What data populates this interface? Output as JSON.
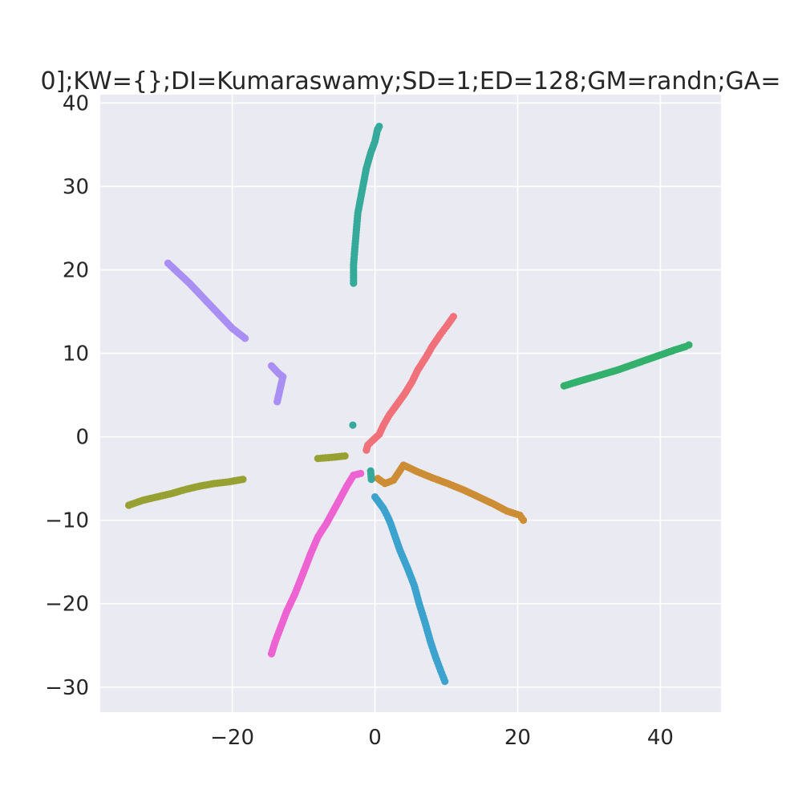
{
  "chart_data": {
    "type": "scatter",
    "title": "0];KW={};DI=Kumaraswamy;SD=1;ED=128;GM=randn;GA=",
    "xlabel": "",
    "ylabel": "",
    "xlim": [
      -38.5,
      48.5
    ],
    "ylim": [
      -33,
      41
    ],
    "grid": true,
    "background": "#eaeaf2",
    "grid_color": "#ffffff",
    "x_ticks": [
      {
        "value": -20,
        "label": "−20"
      },
      {
        "value": 0,
        "label": "0"
      },
      {
        "value": 20,
        "label": "20"
      },
      {
        "value": 40,
        "label": "40"
      }
    ],
    "y_ticks": [
      {
        "value": 40,
        "label": "40"
      },
      {
        "value": 30,
        "label": "30"
      },
      {
        "value": 20,
        "label": "20"
      },
      {
        "value": 10,
        "label": "10"
      },
      {
        "value": 0,
        "label": "0"
      },
      {
        "value": -10,
        "label": "−10"
      },
      {
        "value": -20,
        "label": "−20"
      },
      {
        "value": -30,
        "label": "−30"
      }
    ],
    "series": [
      {
        "color": "#f0717a",
        "points": [
          [
            -1.2,
            -1.6
          ],
          [
            -1.0,
            -1.0
          ],
          [
            -0.4,
            -0.5
          ],
          [
            0.6,
            0.3
          ],
          [
            1.2,
            1.4
          ],
          [
            2.0,
            2.6
          ],
          [
            3.2,
            4.0
          ],
          [
            4.2,
            5.2
          ],
          [
            5.2,
            6.6
          ],
          [
            6.0,
            8.0
          ],
          [
            7.2,
            9.6
          ],
          [
            8.0,
            10.8
          ],
          [
            9.2,
            12.3
          ],
          [
            10.0,
            13.2
          ],
          [
            11.0,
            14.4
          ]
        ]
      },
      {
        "color": "#cc8d35",
        "points": [
          [
            0.4,
            -5.0
          ],
          [
            1.4,
            -5.6
          ],
          [
            2.6,
            -5.2
          ],
          [
            4.0,
            -3.4
          ],
          [
            6.0,
            -4.2
          ],
          [
            8.0,
            -4.9
          ],
          [
            10.2,
            -5.6
          ],
          [
            12.5,
            -6.4
          ],
          [
            14.5,
            -7.2
          ],
          [
            16.5,
            -8.0
          ],
          [
            18.5,
            -8.9
          ],
          [
            20.3,
            -9.4
          ],
          [
            20.8,
            -10.0
          ]
        ]
      },
      {
        "color": "#96a132",
        "points": [
          [
            -34.5,
            -8.2
          ],
          [
            -32.5,
            -7.6
          ],
          [
            -30.5,
            -7.2
          ],
          [
            -28.5,
            -6.8
          ],
          [
            -26.5,
            -6.3
          ],
          [
            -24.5,
            -5.9
          ],
          [
            -22.5,
            -5.6
          ],
          [
            -20.5,
            -5.4
          ],
          [
            -18.5,
            -5.1
          ],
          [
            -8.0,
            -2.6
          ],
          [
            -6.5,
            -2.5
          ],
          [
            -4.2,
            -2.3
          ]
        ]
      },
      {
        "color": "#33b06c",
        "points": [
          [
            26.5,
            6.1
          ],
          [
            28.0,
            6.5
          ],
          [
            30.0,
            7.0
          ],
          [
            32.0,
            7.5
          ],
          [
            34.0,
            8.0
          ],
          [
            36.0,
            8.6
          ],
          [
            38.0,
            9.2
          ],
          [
            40.0,
            9.8
          ],
          [
            42.0,
            10.4
          ],
          [
            43.5,
            10.8
          ],
          [
            44.0,
            11.0
          ]
        ]
      },
      {
        "color": "#36aa9a",
        "points": [
          [
            -3.0,
            18.4
          ],
          [
            -3.0,
            20.6
          ],
          [
            -2.8,
            22.8
          ],
          [
            -2.6,
            24.8
          ],
          [
            -2.4,
            26.8
          ],
          [
            -1.8,
            29.5
          ],
          [
            -1.2,
            32.2
          ],
          [
            -0.6,
            34.0
          ],
          [
            0.0,
            35.4
          ],
          [
            0.3,
            36.6
          ],
          [
            0.6,
            37.2
          ],
          [
            0.4,
            36.9
          ],
          [
            -3.1,
            1.4
          ],
          [
            -0.6,
            -4.1
          ],
          [
            -0.5,
            -5.1
          ]
        ]
      },
      {
        "color": "#3ba3cd",
        "points": [
          [
            0.0,
            -7.2
          ],
          [
            1.2,
            -8.6
          ],
          [
            1.8,
            -9.6
          ],
          [
            2.2,
            -10.4
          ],
          [
            3.5,
            -13.6
          ],
          [
            4.5,
            -15.6
          ],
          [
            5.5,
            -17.8
          ],
          [
            6.2,
            -20.0
          ],
          [
            7.0,
            -22.2
          ],
          [
            7.8,
            -24.6
          ],
          [
            8.5,
            -26.4
          ],
          [
            9.2,
            -28.0
          ],
          [
            9.8,
            -29.3
          ]
        ]
      },
      {
        "color": "#a98ff3",
        "points": [
          [
            -29.0,
            20.8
          ],
          [
            -27.5,
            19.6
          ],
          [
            -26.0,
            18.4
          ],
          [
            -24.0,
            16.6
          ],
          [
            -22.0,
            14.8
          ],
          [
            -20.0,
            13.0
          ],
          [
            -18.2,
            11.8
          ],
          [
            -14.5,
            8.5
          ],
          [
            -13.5,
            7.6
          ],
          [
            -12.9,
            7.2
          ],
          [
            -13.7,
            4.2
          ]
        ]
      },
      {
        "color": "#ed63d2",
        "points": [
          [
            -14.5,
            -26.0
          ],
          [
            -14.0,
            -24.6
          ],
          [
            -13.2,
            -22.8
          ],
          [
            -12.4,
            -21.0
          ],
          [
            -11.2,
            -18.8
          ],
          [
            -10.0,
            -16.2
          ],
          [
            -9.0,
            -14.0
          ],
          [
            -8.0,
            -12.0
          ],
          [
            -6.8,
            -10.4
          ],
          [
            -5.0,
            -7.6
          ],
          [
            -4.0,
            -6.0
          ],
          [
            -3.0,
            -4.6
          ],
          [
            -2.0,
            -4.4
          ]
        ]
      }
    ]
  }
}
